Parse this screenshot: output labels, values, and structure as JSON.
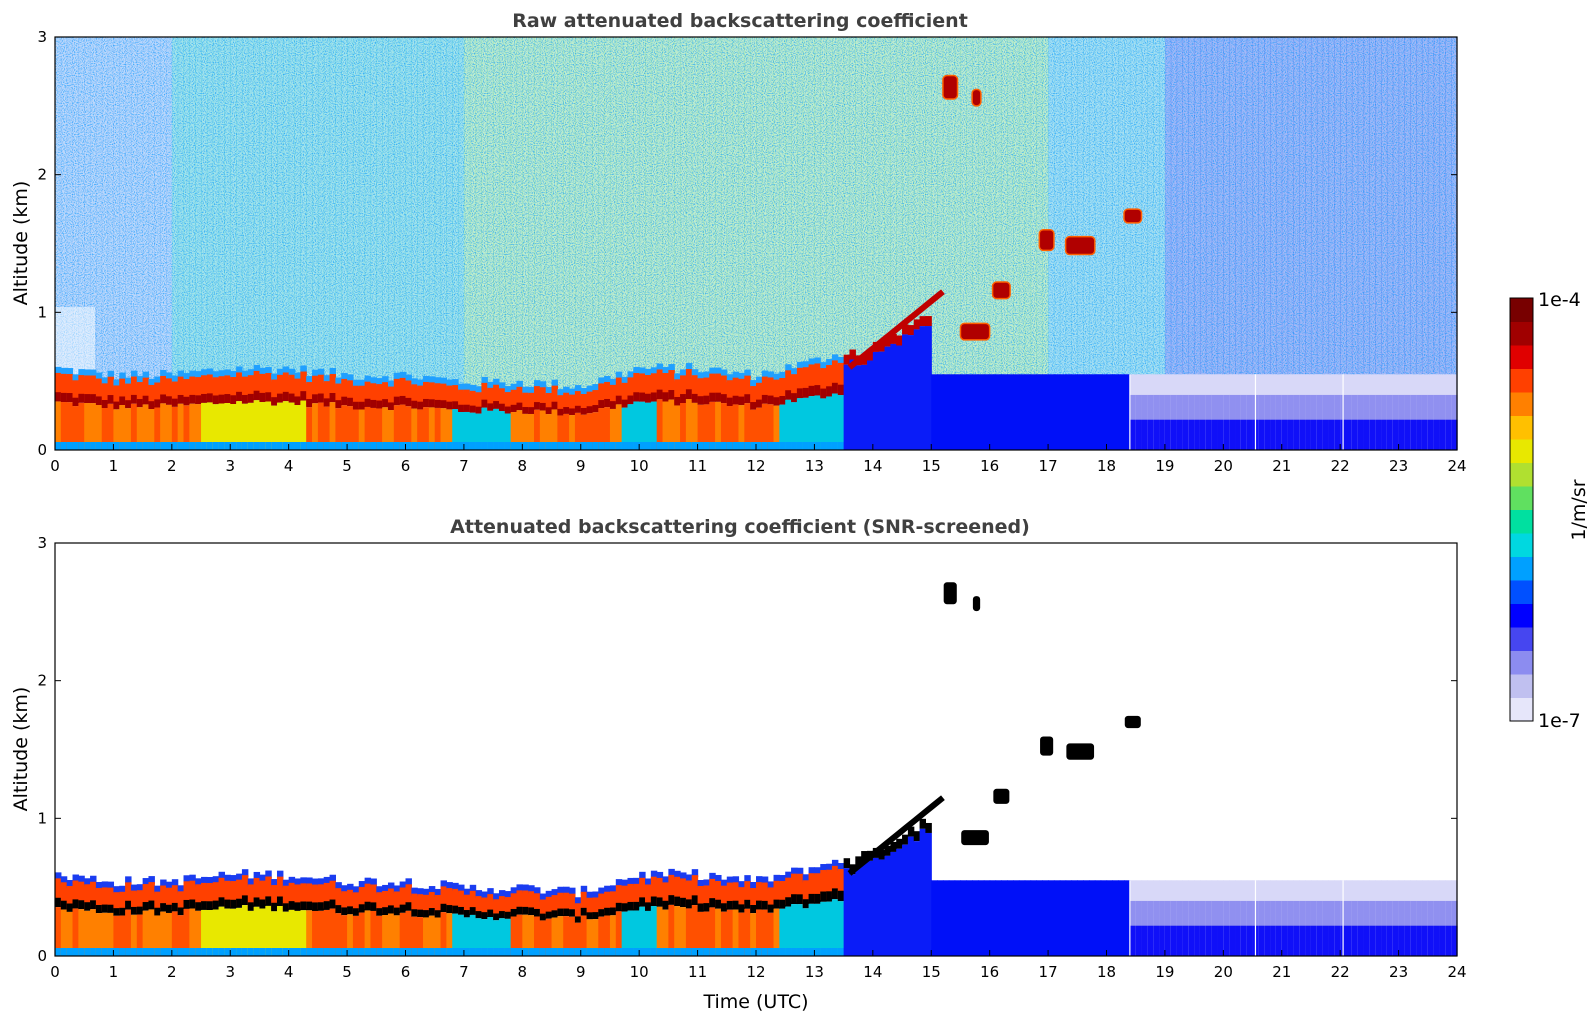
{
  "chart_data": [
    {
      "type": "heatmap",
      "title": "Raw attenuated backscattering coefficient",
      "xlabel": "",
      "ylabel": "Altitude (km)",
      "xlim": [
        0,
        24
      ],
      "ylim": [
        0,
        3
      ],
      "x_ticks": [
        "0",
        "1",
        "2",
        "3",
        "4",
        "5",
        "6",
        "7",
        "8",
        "9",
        "10",
        "11",
        "12",
        "13",
        "14",
        "15",
        "16",
        "17",
        "18",
        "19",
        "20",
        "21",
        "22",
        "23",
        "24"
      ],
      "y_ticks": [
        "0",
        "1",
        "2",
        "3"
      ],
      "boundary_layer_top_km": [
        [
          0,
          0.55
        ],
        [
          1,
          0.5
        ],
        [
          2,
          0.5
        ],
        [
          3,
          0.55
        ],
        [
          4,
          0.55
        ],
        [
          5,
          0.5
        ],
        [
          6,
          0.5
        ],
        [
          7,
          0.45
        ],
        [
          8,
          0.45
        ],
        [
          9,
          0.42
        ],
        [
          10,
          0.55
        ],
        [
          11,
          0.55
        ],
        [
          12,
          0.5
        ],
        [
          13,
          0.6
        ],
        [
          14,
          0.75
        ],
        [
          15,
          1.0
        ]
      ],
      "elevated_layers": [
        {
          "x": [
            15.2,
            15.45
          ],
          "y": [
            2.55,
            2.72
          ]
        },
        {
          "x": [
            15.7,
            15.85
          ],
          "y": [
            2.5,
            2.62
          ]
        },
        {
          "x": [
            18.3,
            18.6
          ],
          "y": [
            1.65,
            1.75
          ]
        },
        {
          "x": [
            16.85,
            17.1
          ],
          "y": [
            1.45,
            1.6
          ]
        },
        {
          "x": [
            17.3,
            17.8
          ],
          "y": [
            1.42,
            1.55
          ]
        },
        {
          "x": [
            16.05,
            16.35
          ],
          "y": [
            1.1,
            1.22
          ]
        },
        {
          "x": [
            15.5,
            16.0
          ],
          "y": [
            0.8,
            0.92
          ]
        }
      ]
    },
    {
      "type": "heatmap",
      "title": "Attenuated backscattering coefficient (SNR-screened)",
      "xlabel": "Time (UTC)",
      "ylabel": "Altitude (km)",
      "xlim": [
        0,
        24
      ],
      "ylim": [
        0,
        3
      ],
      "x_ticks": [
        "0",
        "1",
        "2",
        "3",
        "4",
        "5",
        "6",
        "7",
        "8",
        "9",
        "10",
        "11",
        "12",
        "13",
        "14",
        "15",
        "16",
        "17",
        "18",
        "19",
        "20",
        "21",
        "22",
        "23",
        "24"
      ],
      "y_ticks": [
        "0",
        "1",
        "2",
        "3"
      ]
    }
  ],
  "colorbar": {
    "max_label": "1e-4",
    "min_label": "1e-7",
    "unit_label": "1/m/sr",
    "scale": "log",
    "colors": [
      "#e6e6fa",
      "#c0c0f0",
      "#8c8cf0",
      "#4646f0",
      "#0000ff",
      "#0050ff",
      "#00a0ff",
      "#00d8e0",
      "#00e0a0",
      "#60e060",
      "#b0e030",
      "#e8e800",
      "#ffc000",
      "#ff8000",
      "#ff4000",
      "#e00000",
      "#a00000",
      "#780000"
    ]
  }
}
